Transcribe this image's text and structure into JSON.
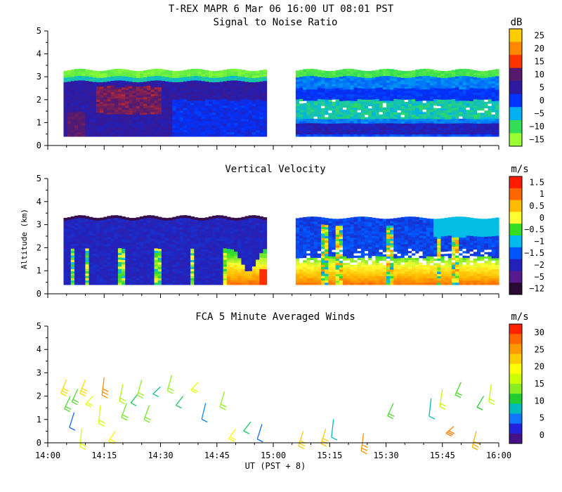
{
  "header": "T-REX  MAPR  6 Mar 06  16:00 UT  08:01  PST",
  "xaxis": {
    "label": "UT  (PST + 8)",
    "range_hours": [
      14.0,
      16.0
    ],
    "ticks": [
      "14:00",
      "14:15",
      "14:30",
      "14:45",
      "15:00",
      "15:15",
      "15:30",
      "15:45",
      "16:00"
    ]
  },
  "yaxis": {
    "label": "Altitude (km)",
    "range": [
      0,
      5
    ],
    "ticks": [
      "0",
      "1",
      "2",
      "3",
      "4",
      "5"
    ]
  },
  "chart_data": [
    {
      "type": "heatmap",
      "title": "Signal to Noise Ratio",
      "unit": "dB",
      "colorbar": {
        "labels": [
          "25",
          "20",
          "15",
          "10",
          "5",
          "0",
          "−5",
          "−10",
          "−15"
        ],
        "colors": [
          "#ffcc00",
          "#ff8800",
          "#ff3300",
          "#551a6e",
          "#2e1aa0",
          "#0033ff",
          "#00b0f0",
          "#33dd55",
          "#99ff33"
        ]
      },
      "data_gap_ut": [
        "14:59",
        "15:05"
      ],
      "data_top_km": 3.3,
      "features": [
        {
          "from_hour": 14.07,
          "to_hour": 14.99,
          "alt_km": [
            0.4,
            2.9
          ],
          "level_db": 5
        },
        {
          "from_hour": 14.17,
          "to_hour": 14.47,
          "alt_km": [
            1.6,
            2.6
          ],
          "level_db": 10
        },
        {
          "from_hour": 15.08,
          "to_hour": 16.0,
          "alt_km": [
            1.2,
            2.0
          ],
          "level_db": -10
        },
        {
          "from_hour": 15.08,
          "to_hour": 16.0,
          "alt_km": [
            0.5,
            1.0
          ],
          "level_db": 0
        }
      ]
    },
    {
      "type": "heatmap",
      "title": "Vertical Velocity",
      "unit": "m/s",
      "colorbar": {
        "labels": [
          "1.5",
          "1",
          "0.5",
          "0",
          "−0.5",
          "−1",
          "−1.5",
          "−2",
          "−5",
          "−12"
        ],
        "colors": [
          "#ff1a00",
          "#ff6600",
          "#ffbb00",
          "#ffff33",
          "#33dd22",
          "#00bbee",
          "#0055ff",
          "#2222bb",
          "#551a8e",
          "#2a0a33"
        ]
      },
      "data_gap_ut": [
        "14:59",
        "15:05"
      ],
      "data_top_km": 3.4,
      "features": [
        {
          "from_hour": 14.07,
          "to_hour": 14.99,
          "alt_km": [
            0.4,
            3.3
          ],
          "level_ms": -5
        },
        {
          "from_hour": 14.8,
          "to_hour": 14.99,
          "alt_km": [
            0.4,
            1.2
          ],
          "level_ms": 1.5
        },
        {
          "from_hour": 15.05,
          "to_hour": 15.5,
          "alt_km": [
            0.4,
            1.4
          ],
          "level_ms": 1.0
        }
      ]
    },
    {
      "type": "scatter",
      "title": "FCA 5 Minute Averaged Winds",
      "unit": "m/s",
      "colorbar": {
        "labels": [
          "30",
          "25",
          "20",
          "15",
          "10",
          "5",
          "0"
        ],
        "colors": [
          "#ff2200",
          "#ff6600",
          "#ff9900",
          "#ffcc00",
          "#ffff00",
          "#ccff00",
          "#88ee22",
          "#22cc33",
          "#00bbbb",
          "#1177ff",
          "#2222dd",
          "#441188"
        ]
      },
      "barbs": [
        {
          "x": 14.083,
          "y": 2.7,
          "speed": 21
        },
        {
          "x": 14.1,
          "y": 2.0,
          "speed": 12
        },
        {
          "x": 14.117,
          "y": 1.3,
          "speed": 5
        },
        {
          "x": 14.133,
          "y": 2.3,
          "speed": 12
        },
        {
          "x": 14.167,
          "y": 2.7,
          "speed": 21
        },
        {
          "x": 14.15,
          "y": 0.6,
          "speed": 17
        },
        {
          "x": 14.2,
          "y": 2.0,
          "speed": 18
        },
        {
          "x": 14.25,
          "y": 2.8,
          "speed": 25
        },
        {
          "x": 14.233,
          "y": 1.6,
          "speed": 17
        },
        {
          "x": 14.3,
          "y": 0.5,
          "speed": 19
        },
        {
          "x": 14.333,
          "y": 2.5,
          "speed": 15
        },
        {
          "x": 14.35,
          "y": 1.7,
          "speed": 13
        },
        {
          "x": 14.4,
          "y": 2.1,
          "speed": 10
        },
        {
          "x": 14.417,
          "y": 2.7,
          "speed": 14
        },
        {
          "x": 14.45,
          "y": 1.6,
          "speed": 13
        },
        {
          "x": 14.5,
          "y": 2.4,
          "speed": 9
        },
        {
          "x": 14.55,
          "y": 2.9,
          "speed": 14
        },
        {
          "x": 14.6,
          "y": 2.0,
          "speed": 10
        },
        {
          "x": 14.667,
          "y": 2.6,
          "speed": 18
        },
        {
          "x": 14.7,
          "y": 1.7,
          "speed": 6
        },
        {
          "x": 14.783,
          "y": 2.2,
          "speed": 14
        },
        {
          "x": 14.833,
          "y": 0.6,
          "speed": 19
        },
        {
          "x": 14.9,
          "y": 0.9,
          "speed": 10
        },
        {
          "x": 14.95,
          "y": 0.8,
          "speed": 5
        },
        {
          "x": 15.133,
          "y": 0.5,
          "speed": 22
        },
        {
          "x": 15.233,
          "y": 0.6,
          "speed": 22
        },
        {
          "x": 15.267,
          "y": 1.0,
          "speed": 8
        },
        {
          "x": 15.4,
          "y": 0.4,
          "speed": 25
        },
        {
          "x": 15.533,
          "y": 1.7,
          "speed": 12
        },
        {
          "x": 15.7,
          "y": 1.9,
          "speed": 8
        },
        {
          "x": 15.75,
          "y": 2.3,
          "speed": 16
        },
        {
          "x": 15.8,
          "y": 0.7,
          "speed": 26
        },
        {
          "x": 15.833,
          "y": 2.6,
          "speed": 12
        },
        {
          "x": 15.9,
          "y": 0.5,
          "speed": 23
        },
        {
          "x": 15.933,
          "y": 2.0,
          "speed": 11
        },
        {
          "x": 15.967,
          "y": 2.5,
          "speed": 16
        }
      ]
    }
  ]
}
